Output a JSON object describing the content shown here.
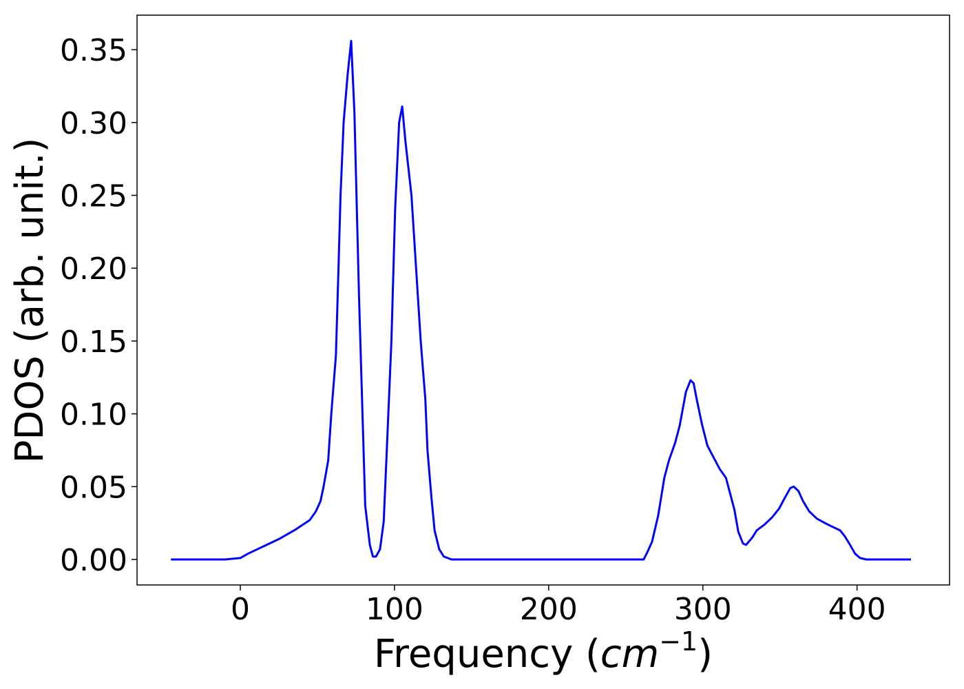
{
  "chart_data": {
    "type": "line",
    "xlabel": [
      "Frequency (",
      "cm",
      "−1",
      ")"
    ],
    "ylabel": "PDOS (arb. unit.)",
    "xlim": [
      -67,
      460
    ],
    "ylim": [
      -0.0175,
      0.3737
    ],
    "xticks": [
      0,
      100,
      200,
      300,
      400
    ],
    "yticks": [
      {
        "value": 0,
        "label": "0.00"
      },
      {
        "value": 0.05,
        "label": "0.05"
      },
      {
        "value": 0.1,
        "label": "0.10"
      },
      {
        "value": 0.15,
        "label": "0.15"
      },
      {
        "value": 0.2,
        "label": "0.20"
      },
      {
        "value": 0.25,
        "label": "0.25"
      },
      {
        "value": 0.3,
        "label": "0.30"
      },
      {
        "value": 0.35,
        "label": "0.35"
      }
    ],
    "grid": false,
    "series": [
      {
        "color": "#0000ff",
        "x": [
          -45,
          -10,
          0,
          5,
          15,
          25,
          35,
          45,
          49,
          52,
          54,
          57,
          59,
          62,
          63.4,
          65,
          67,
          69.6,
          71.9,
          74,
          77,
          81,
          84,
          86,
          88,
          90.6,
          93,
          95,
          98,
          100.4,
          103,
          105,
          107,
          111,
          114,
          117,
          120,
          121.4,
          124,
          126,
          129,
          132,
          137,
          261.6,
          264,
          267,
          271,
          275,
          278,
          282,
          285,
          289,
          292,
          294,
          296,
          299.6,
          303,
          307,
          311,
          315,
          317,
          320.5,
          323,
          326,
          328,
          332,
          335,
          340,
          345,
          349.5,
          353,
          356.7,
          359,
          362,
          365,
          369,
          374,
          381,
          389,
          392,
          395.5,
          398.7,
          402,
          406,
          435
        ],
        "values": [
          0,
          0,
          0.001,
          0.004,
          0.009,
          0.014,
          0.02,
          0.027,
          0.033,
          0.04,
          0.05,
          0.068,
          0.1,
          0.14,
          0.19,
          0.25,
          0.3,
          0.333,
          0.356,
          0.307,
          0.18,
          0.037,
          0.01,
          0.002,
          0.002,
          0.007,
          0.026,
          0.075,
          0.15,
          0.24,
          0.3,
          0.311,
          0.288,
          0.25,
          0.2,
          0.15,
          0.11,
          0.075,
          0.042,
          0.02,
          0.007,
          0.002,
          0,
          0,
          0.005,
          0.012,
          0.03,
          0.056,
          0.068,
          0.08,
          0.092,
          0.115,
          0.123,
          0.121,
          0.11,
          0.092,
          0.078,
          0.07,
          0.062,
          0.056,
          0.048,
          0.034,
          0.019,
          0.011,
          0.01,
          0.015,
          0.02,
          0.024,
          0.029,
          0.035,
          0.042,
          0.049,
          0.05,
          0.047,
          0.04,
          0.033,
          0.028,
          0.024,
          0.02,
          0.016,
          0.01,
          0.004,
          0.001,
          0,
          0
        ]
      }
    ]
  }
}
